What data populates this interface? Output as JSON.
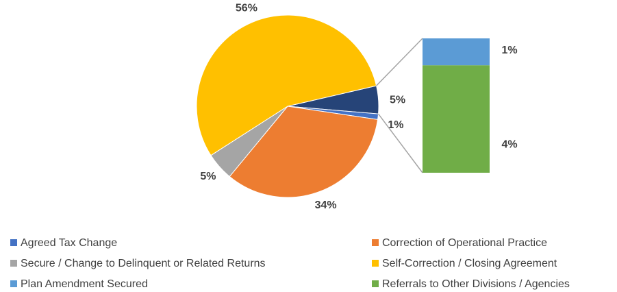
{
  "chart_data": {
    "type": "pie-of-bar",
    "pie": {
      "categories": [
        null,
        "Agreed Tax Change",
        "Correction of Operational Practice",
        "Secure / Change to Delinquent or Related Returns",
        "Self-Correction / Closing Agreement"
      ],
      "values": [
        5,
        1,
        34,
        5,
        56
      ],
      "value_labels": [
        "5%",
        "1%",
        "34%",
        "5%",
        "56%"
      ],
      "colors": [
        "#264478",
        "#4472c4",
        "#ed7d31",
        "#a5a5a5",
        "#ffc000"
      ]
    },
    "bar": {
      "categories": [
        "Plan Amendment Secured",
        "Referrals to Other Divisions / Agencies"
      ],
      "values": [
        1,
        4
      ],
      "value_labels": [
        "1%",
        "4%"
      ],
      "colors": [
        "#5b9bd5",
        "#70ad47"
      ]
    }
  }
}
